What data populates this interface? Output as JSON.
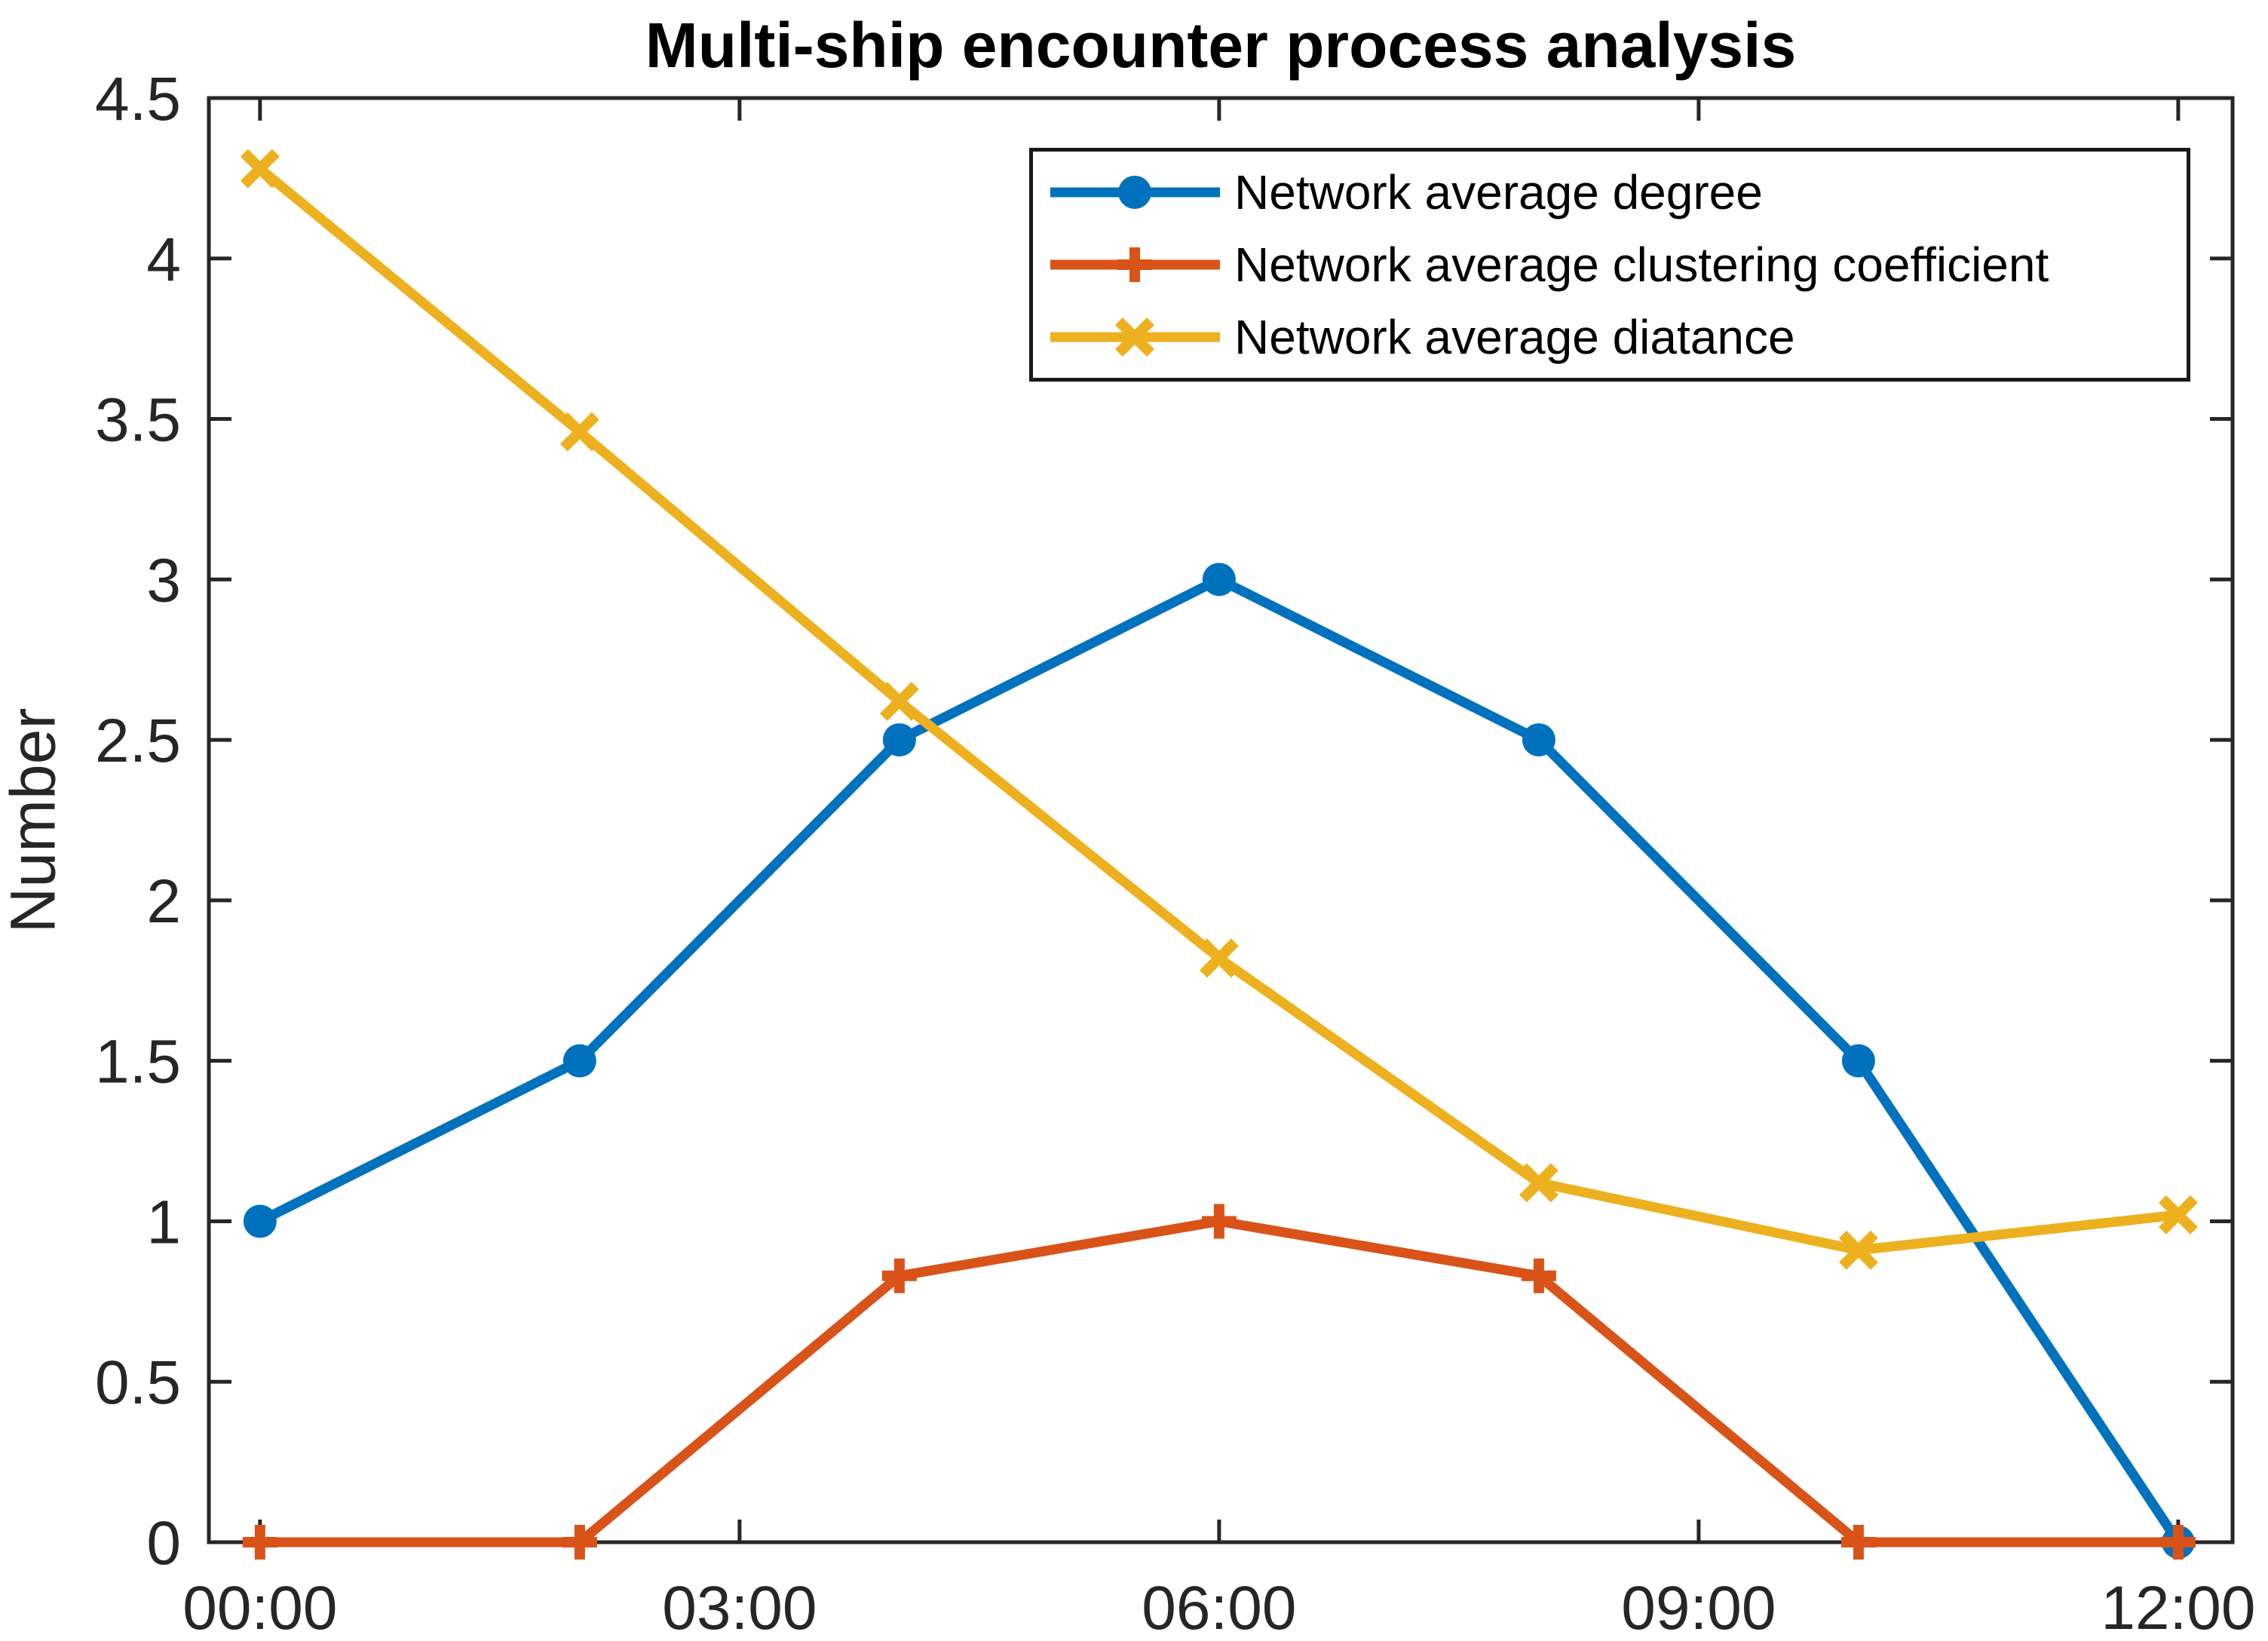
{
  "figure": {
    "background": "#ffffff",
    "axis_color": "#262626",
    "text_color": "#262626"
  },
  "chart_data": {
    "type": "line",
    "title": "Multi-ship encounter process analysis",
    "xlabel": "",
    "ylabel": "Number",
    "grid": false,
    "legend_position": "top-right-inside",
    "x_hours": [
      0,
      2,
      4,
      6,
      8,
      10,
      12
    ],
    "xlim_hours": [
      -0.32,
      12.34
    ],
    "ylim": [
      0,
      4.5
    ],
    "x_ticks": {
      "hours": [
        0,
        3,
        6,
        9,
        12
      ],
      "labels": [
        "00:00",
        "03:00",
        "06:00",
        "09:00",
        "12:00"
      ]
    },
    "y_ticks": {
      "values": [
        0,
        0.5,
        1,
        1.5,
        2,
        2.5,
        3,
        3.5,
        4,
        4.5
      ],
      "labels": [
        "0",
        "0.5",
        "1",
        "1.5",
        "2",
        "2.5",
        "3",
        "3.5",
        "4",
        "4.5"
      ]
    },
    "series": [
      {
        "name": "Network average degree",
        "color": "#0072BD",
        "marker": "circle",
        "values": [
          1.0,
          1.5,
          2.5,
          3.0,
          2.5,
          1.5,
          0.0
        ]
      },
      {
        "name": "Network average clustering coefficient",
        "color": "#D95319",
        "marker": "plus",
        "values": [
          0.0,
          0.0,
          0.83,
          1.0,
          0.83,
          0.0,
          0.0
        ]
      },
      {
        "name": "Network average diatance",
        "color": "#EDB120",
        "marker": "x",
        "values": [
          4.28,
          3.46,
          2.62,
          1.82,
          1.12,
          0.91,
          1.02
        ]
      }
    ]
  }
}
